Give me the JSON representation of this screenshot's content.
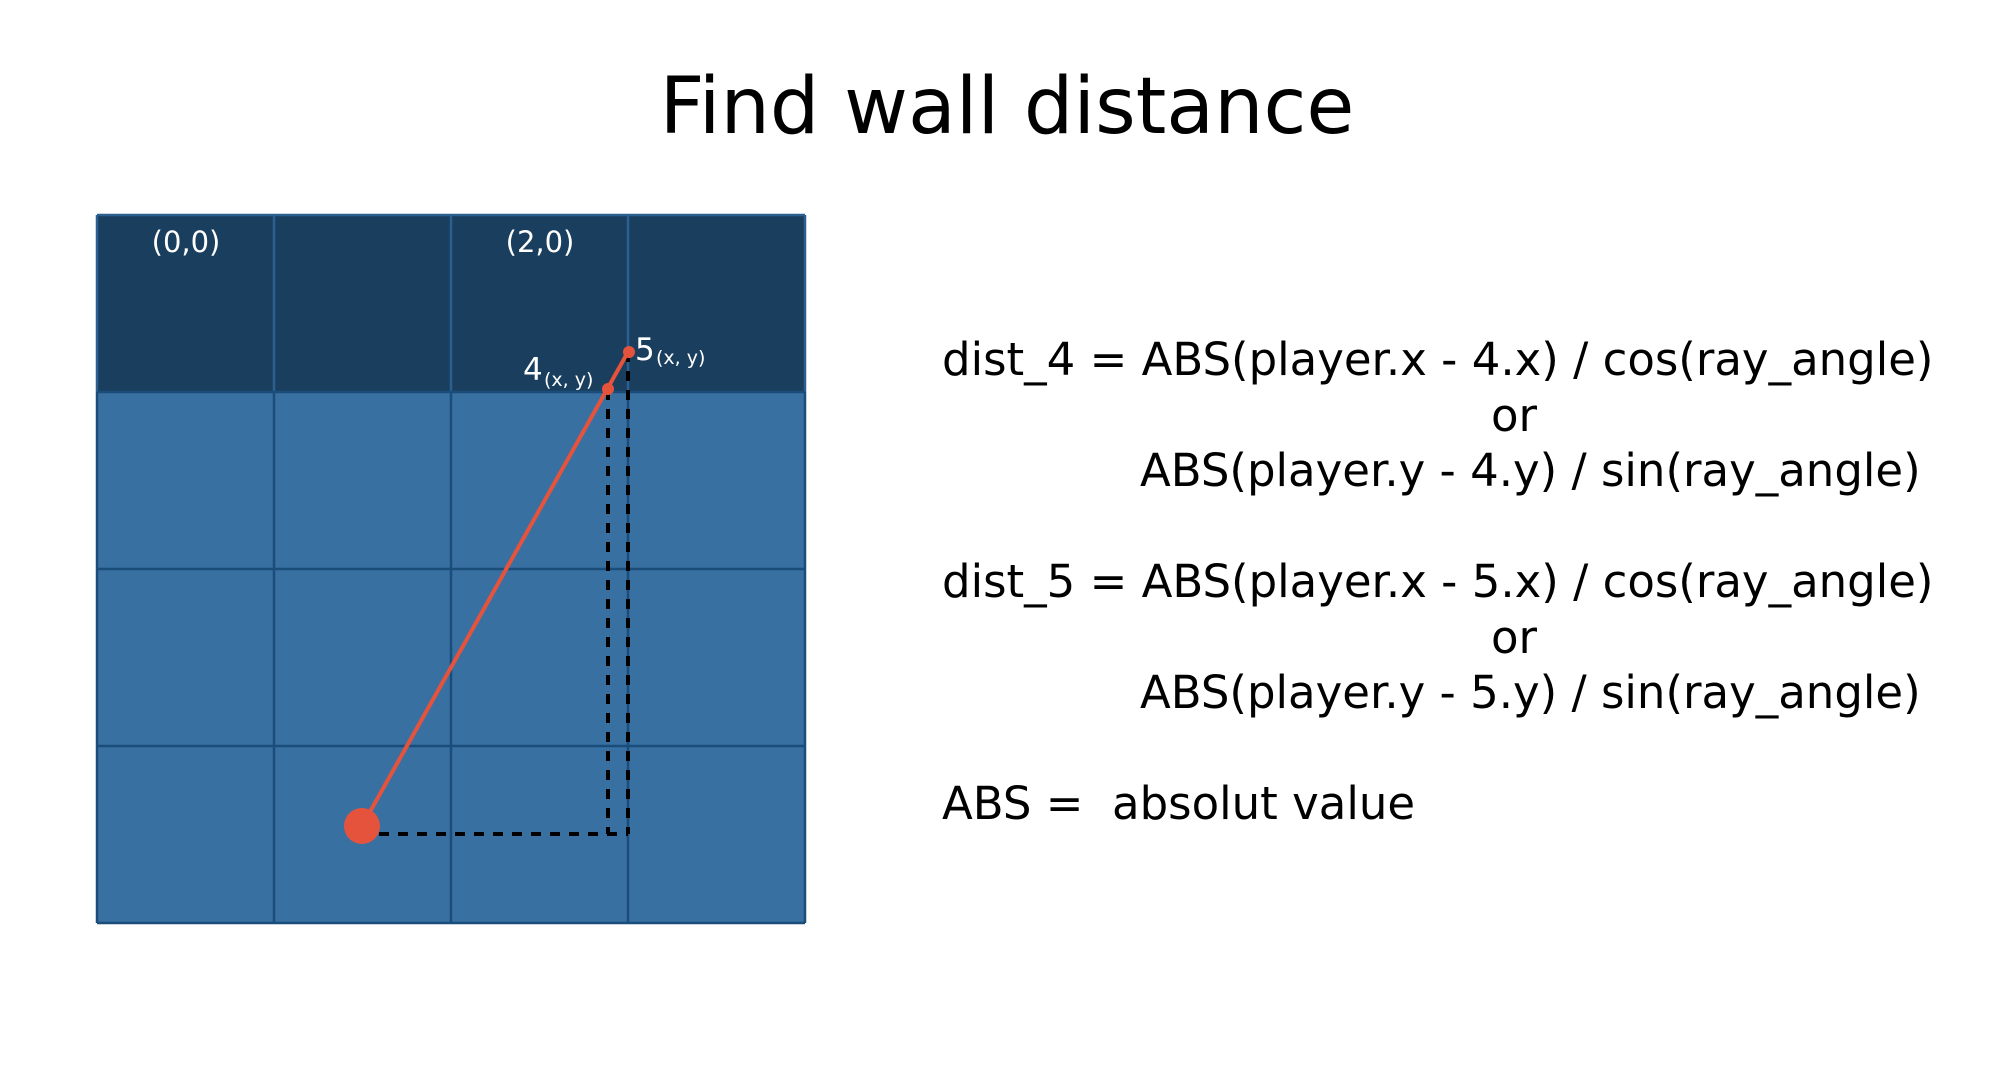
{
  "title": "Find wall distance",
  "colors": {
    "wall": "#1a3e5e",
    "floor": "#3870a2",
    "grid_line": "#1a4d7a",
    "wall_grid_line": "#2a5f90",
    "ray": "#e6533c",
    "dash": "#000000",
    "label": "#ffffff"
  },
  "grid": {
    "cols": 4,
    "rows": 4,
    "wall_rows": 1,
    "cell_labels": [
      {
        "col": 0,
        "row": 0,
        "text": "(0,0)"
      },
      {
        "col": 2,
        "row": 0,
        "text": "(2,0)"
      }
    ]
  },
  "points": {
    "p4": {
      "main": "4",
      "sub": "(x, y)"
    },
    "p5": {
      "main": "5",
      "sub": "(x, y)"
    }
  },
  "formulas": {
    "dist4_line1": "dist_4 = ABS(player.x - 4.x) / cos(ray_angle)",
    "dist4_or": "or",
    "dist4_line2": "ABS(player.y - 4.y) / sin(ray_angle)",
    "dist5_line1": "dist_5 = ABS(player.x - 5.x) / cos(ray_angle)",
    "dist5_or": "or",
    "dist5_line2": "ABS(player.y - 5.y) / sin(ray_angle)",
    "abs_note": "ABS =  absolut value"
  }
}
